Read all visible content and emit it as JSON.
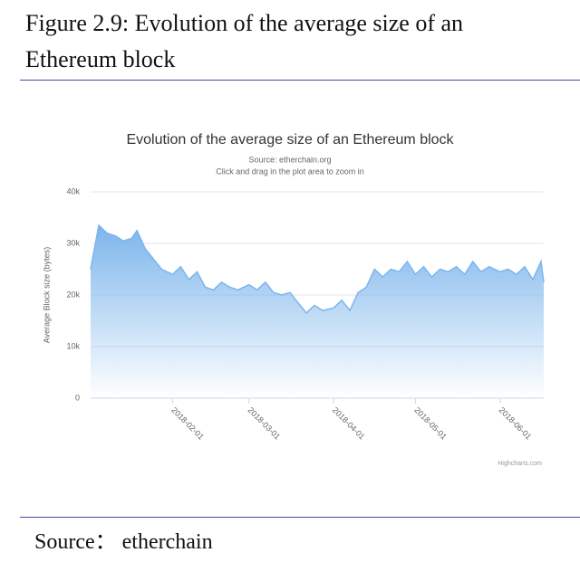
{
  "figure_caption": "Figure 2.9: Evolution of the average size of an Ethereum block",
  "source_note": "Source： etherchain",
  "chart_data": {
    "type": "area",
    "title": "Evolution of the average size of an Ethereum block",
    "subtitle": "Source: etherchain.org",
    "instruction": "Click and drag in the plot area to zoom in",
    "y_axis_label": "Average Block size (bytes)",
    "credits": "Highcharts.com",
    "x": [
      "2018-01-02",
      "2018-01-05",
      "2018-01-08",
      "2018-01-11",
      "2018-01-14",
      "2018-01-17",
      "2018-01-19",
      "2018-01-22",
      "2018-01-25",
      "2018-01-28",
      "2018-02-01",
      "2018-02-04",
      "2018-02-07",
      "2018-02-10",
      "2018-02-13",
      "2018-02-16",
      "2018-02-19",
      "2018-02-22",
      "2018-02-25",
      "2018-03-01",
      "2018-03-04",
      "2018-03-07",
      "2018-03-10",
      "2018-03-13",
      "2018-03-16",
      "2018-03-19",
      "2018-03-22",
      "2018-03-25",
      "2018-03-28",
      "2018-04-01",
      "2018-04-04",
      "2018-04-07",
      "2018-04-10",
      "2018-04-13",
      "2018-04-16",
      "2018-04-19",
      "2018-04-22",
      "2018-04-25",
      "2018-04-28",
      "2018-05-01",
      "2018-05-04",
      "2018-05-07",
      "2018-05-10",
      "2018-05-13",
      "2018-05-16",
      "2018-05-19",
      "2018-05-22",
      "2018-05-25",
      "2018-05-28",
      "2018-06-01",
      "2018-06-04",
      "2018-06-07",
      "2018-06-10",
      "2018-06-13",
      "2018-06-16",
      "2018-06-17"
    ],
    "series": [
      {
        "name": "Average Block size",
        "color": "#7cb5ec",
        "values": [
          25000,
          33500,
          32000,
          31500,
          30500,
          31000,
          32500,
          29000,
          27000,
          25000,
          24000,
          25500,
          23000,
          24500,
          21500,
          21000,
          22500,
          21500,
          21000,
          22000,
          21000,
          22500,
          20500,
          20000,
          20500,
          18500,
          16500,
          18000,
          17000,
          17500,
          19000,
          17000,
          20500,
          21500,
          25000,
          23500,
          25000,
          24500,
          26500,
          24000,
          25500,
          23500,
          25000,
          24500,
          25500,
          24000,
          26500,
          24500,
          25500,
          24500,
          25000,
          24000,
          25500,
          23000,
          26500,
          22500
        ]
      }
    ],
    "xlim": [
      "2018-01-02",
      "2018-06-17"
    ],
    "xticks": [
      "2018-02-01",
      "2018-03-01",
      "2018-04-01",
      "2018-05-01",
      "2018-06-01"
    ],
    "ylim": [
      0,
      40000
    ],
    "yticks": [
      0,
      {
        "value": 10000,
        "label": "10k"
      },
      {
        "value": 20000,
        "label": "20k"
      },
      {
        "value": 30000,
        "label": "30k"
      },
      {
        "value": 40000,
        "label": "40k"
      }
    ],
    "grid": true
  }
}
